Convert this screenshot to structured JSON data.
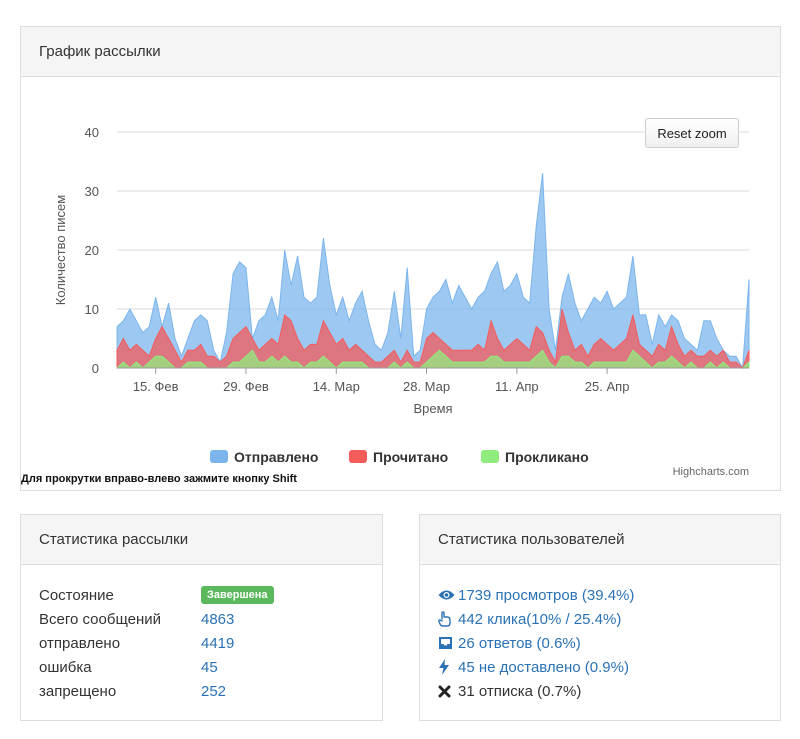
{
  "chart_panel": {
    "title": "График рассылки",
    "reset_zoom": "Reset zoom",
    "credits": "Highcharts.com",
    "hint": "Для прокрутки вправо-влево зажмите кнопку Shift"
  },
  "chart_data": {
    "type": "area",
    "ylabel": "Количество писем",
    "xlabel": "Время",
    "ylim": [
      0,
      40
    ],
    "y_ticks": [
      "0",
      "10",
      "20",
      "30",
      "40"
    ],
    "x_ticks": [
      {
        "label": "15. Фев",
        "index": 6
      },
      {
        "label": "29. Фев",
        "index": 20
      },
      {
        "label": "14. Мар",
        "index": 34
      },
      {
        "label": "28. Мар",
        "index": 48
      },
      {
        "label": "11. Апр",
        "index": 62
      },
      {
        "label": "25. Апр",
        "index": 76
      }
    ],
    "legend_position": "bottom",
    "series": [
      {
        "name": "Отправлено",
        "color": "#7cb5ec",
        "values": [
          7,
          8,
          10,
          8,
          6,
          7,
          12,
          7,
          11,
          5,
          2,
          5,
          8,
          9,
          8,
          3,
          1,
          6,
          16,
          18,
          17,
          5,
          8,
          9,
          12,
          8,
          20,
          14,
          19,
          12,
          11,
          12,
          22,
          14,
          9,
          12,
          8,
          11,
          13,
          8,
          4,
          3,
          6,
          13,
          5,
          17,
          2,
          3,
          10,
          12,
          13,
          15,
          11,
          14,
          12,
          10,
          12,
          13,
          16,
          18,
          13,
          14,
          16,
          12,
          11,
          24,
          33,
          10,
          3,
          12,
          16,
          11,
          8,
          10,
          12,
          11,
          13,
          10,
          11,
          12,
          19,
          9,
          9,
          4,
          9,
          7,
          9,
          8,
          5,
          4,
          3,
          8,
          8,
          5,
          3,
          2,
          2,
          0,
          15
        ]
      },
      {
        "name": "Прочитано",
        "color": "#f45b5b",
        "values": [
          3,
          5,
          3,
          4,
          3,
          2,
          5,
          7,
          5,
          3,
          1,
          3,
          3,
          4,
          2,
          2,
          1,
          2,
          5,
          6,
          7,
          5,
          3,
          4,
          5,
          4,
          9,
          8,
          5,
          3,
          4,
          4,
          8,
          6,
          4,
          5,
          3,
          4,
          3,
          2,
          1,
          1,
          2,
          3,
          1,
          3,
          1,
          1,
          5,
          6,
          5,
          4,
          3,
          3,
          3,
          3,
          4,
          3,
          8,
          5,
          3,
          4,
          5,
          4,
          3,
          7,
          6,
          3,
          1,
          10,
          6,
          3,
          4,
          2,
          4,
          5,
          4,
          3,
          4,
          5,
          9,
          4,
          3,
          2,
          4,
          3,
          7,
          4,
          2,
          3,
          2,
          2,
          3,
          2,
          3,
          1,
          1,
          0,
          3
        ]
      },
      {
        "name": "Прокликано",
        "color": "#90ed7d",
        "values": [
          0,
          1,
          0,
          1,
          0,
          1,
          2,
          2,
          1,
          0,
          0,
          1,
          1,
          1,
          0,
          0,
          0,
          0,
          1,
          1,
          2,
          3,
          1,
          1,
          2,
          1,
          2,
          1,
          1,
          0,
          1,
          1,
          2,
          1,
          0,
          1,
          1,
          1,
          1,
          0,
          0,
          0,
          0,
          1,
          0,
          1,
          0,
          0,
          1,
          2,
          3,
          2,
          1,
          1,
          1,
          1,
          1,
          1,
          2,
          2,
          1,
          1,
          1,
          1,
          1,
          2,
          3,
          1,
          0,
          2,
          2,
          1,
          1,
          0,
          1,
          1,
          1,
          1,
          1,
          1,
          3,
          2,
          1,
          0,
          1,
          1,
          2,
          1,
          0,
          1,
          0,
          0,
          1,
          0,
          1,
          0,
          0,
          0,
          1
        ]
      }
    ]
  },
  "stats_panel": {
    "title": "Статистика рассылки",
    "rows": [
      {
        "label": "Состояние",
        "value": "Завершена"
      },
      {
        "label": "Всего сообщений",
        "value": "4863"
      },
      {
        "label": "отправлено",
        "value": "4419"
      },
      {
        "label": "ошибка",
        "value": "45"
      },
      {
        "label": "запрещено",
        "value": "252"
      }
    ],
    "badge_color": "#5cb85c"
  },
  "users_panel": {
    "title": "Статистика пользователей",
    "rows": [
      {
        "icon": "eye-icon",
        "text": "1739 просмотров (39.4%)"
      },
      {
        "icon": "hand-pointer-icon",
        "text": "442 клика(10% / 25.4%)"
      },
      {
        "icon": "inbox-icon",
        "text": "26 ответов (0.6%)"
      },
      {
        "icon": "bolt-icon",
        "text": "45 не доставлено (0.9%)"
      },
      {
        "icon": "times-icon",
        "text": "31 отписка (0.7%)"
      }
    ],
    "link_color": "#2a72b5"
  }
}
